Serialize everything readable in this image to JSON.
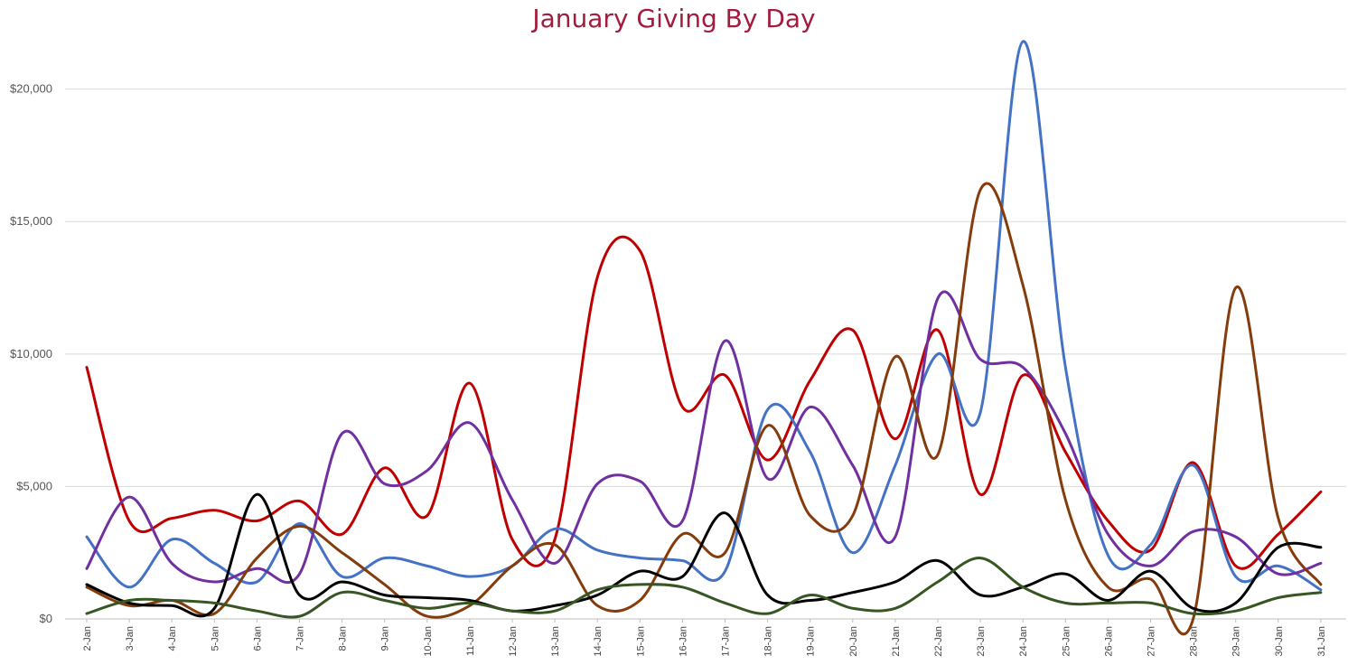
{
  "chart_data": {
    "type": "line",
    "title": "January Giving By Day",
    "xlabel": "",
    "ylabel": "",
    "ylim": [
      0,
      22000
    ],
    "yticks": [
      0,
      5000,
      10000,
      15000,
      20000
    ],
    "ytick_labels": [
      "$0",
      "$5,000",
      "$10,000",
      "$15,000",
      "$20,000"
    ],
    "grid": true,
    "smooth": true,
    "categories": [
      "2-Jan",
      "3-Jan",
      "4-Jan",
      "5-Jan",
      "6-Jan",
      "7-Jan",
      "8-Jan",
      "9-Jan",
      "10-Jan",
      "11-Jan",
      "12-Jan",
      "13-Jan",
      "14-Jan",
      "15-Jan",
      "16-Jan",
      "17-Jan",
      "18-Jan",
      "19-Jan",
      "20-Jan",
      "21-Jan",
      "22-Jan",
      "23-Jan",
      "24-Jan",
      "25-Jan",
      "26-Jan",
      "27-Jan",
      "28-Jan",
      "29-Jan",
      "30-Jan",
      "31-Jan"
    ],
    "series": [
      {
        "color": "#c00000",
        "values": [
          9500,
          3700,
          3800,
          4100,
          3700,
          4450,
          3200,
          5700,
          3900,
          8900,
          3000,
          3000,
          12900,
          13900,
          8000,
          9200,
          6000,
          9000,
          10900,
          6800,
          10900,
          4700,
          9200,
          6300,
          3700,
          2600,
          5900,
          2000,
          3200,
          4800
        ]
      },
      {
        "color": "#4472c4",
        "values": [
          3100,
          1200,
          3000,
          2100,
          1400,
          3600,
          1600,
          2300,
          2000,
          1600,
          2000,
          3400,
          2600,
          2300,
          2200,
          1800,
          7900,
          6300,
          2500,
          5800,
          10000,
          7800,
          21800,
          9500,
          2400,
          2800,
          5800,
          1600,
          2000,
          1100
        ]
      },
      {
        "color": "#7030a0",
        "values": [
          1900,
          4600,
          2100,
          1400,
          1900,
          1700,
          7000,
          5100,
          5600,
          7400,
          4500,
          2100,
          5100,
          5200,
          3700,
          10500,
          5300,
          8000,
          5800,
          3100,
          12100,
          9800,
          9500,
          7000,
          3200,
          2000,
          3300,
          3100,
          1700,
          2100
        ]
      },
      {
        "color": "#843c0c",
        "values": [
          1200,
          500,
          700,
          200,
          2300,
          3500,
          2500,
          1300,
          100,
          500,
          2000,
          2800,
          500,
          700,
          3200,
          2500,
          7300,
          3900,
          3900,
          9900,
          6200,
          16200,
          12600,
          4500,
          1200,
          1500,
          0,
          12500,
          3800,
          1300
        ]
      },
      {
        "color": "#000000",
        "values": [
          1300,
          600,
          500,
          400,
          4700,
          900,
          1400,
          900,
          800,
          700,
          300,
          500,
          900,
          1800,
          1600,
          4000,
          900,
          700,
          1000,
          1400,
          2200,
          900,
          1200,
          1700,
          700,
          1800,
          400,
          600,
          2700,
          2700
        ]
      },
      {
        "color": "#375623",
        "values": [
          200,
          700,
          700,
          600,
          300,
          100,
          1000,
          700,
          400,
          600,
          300,
          300,
          1100,
          1300,
          1200,
          600,
          200,
          900,
          400,
          400,
          1400,
          2300,
          1200,
          600,
          600,
          600,
          200,
          300,
          800,
          1000
        ]
      }
    ]
  }
}
